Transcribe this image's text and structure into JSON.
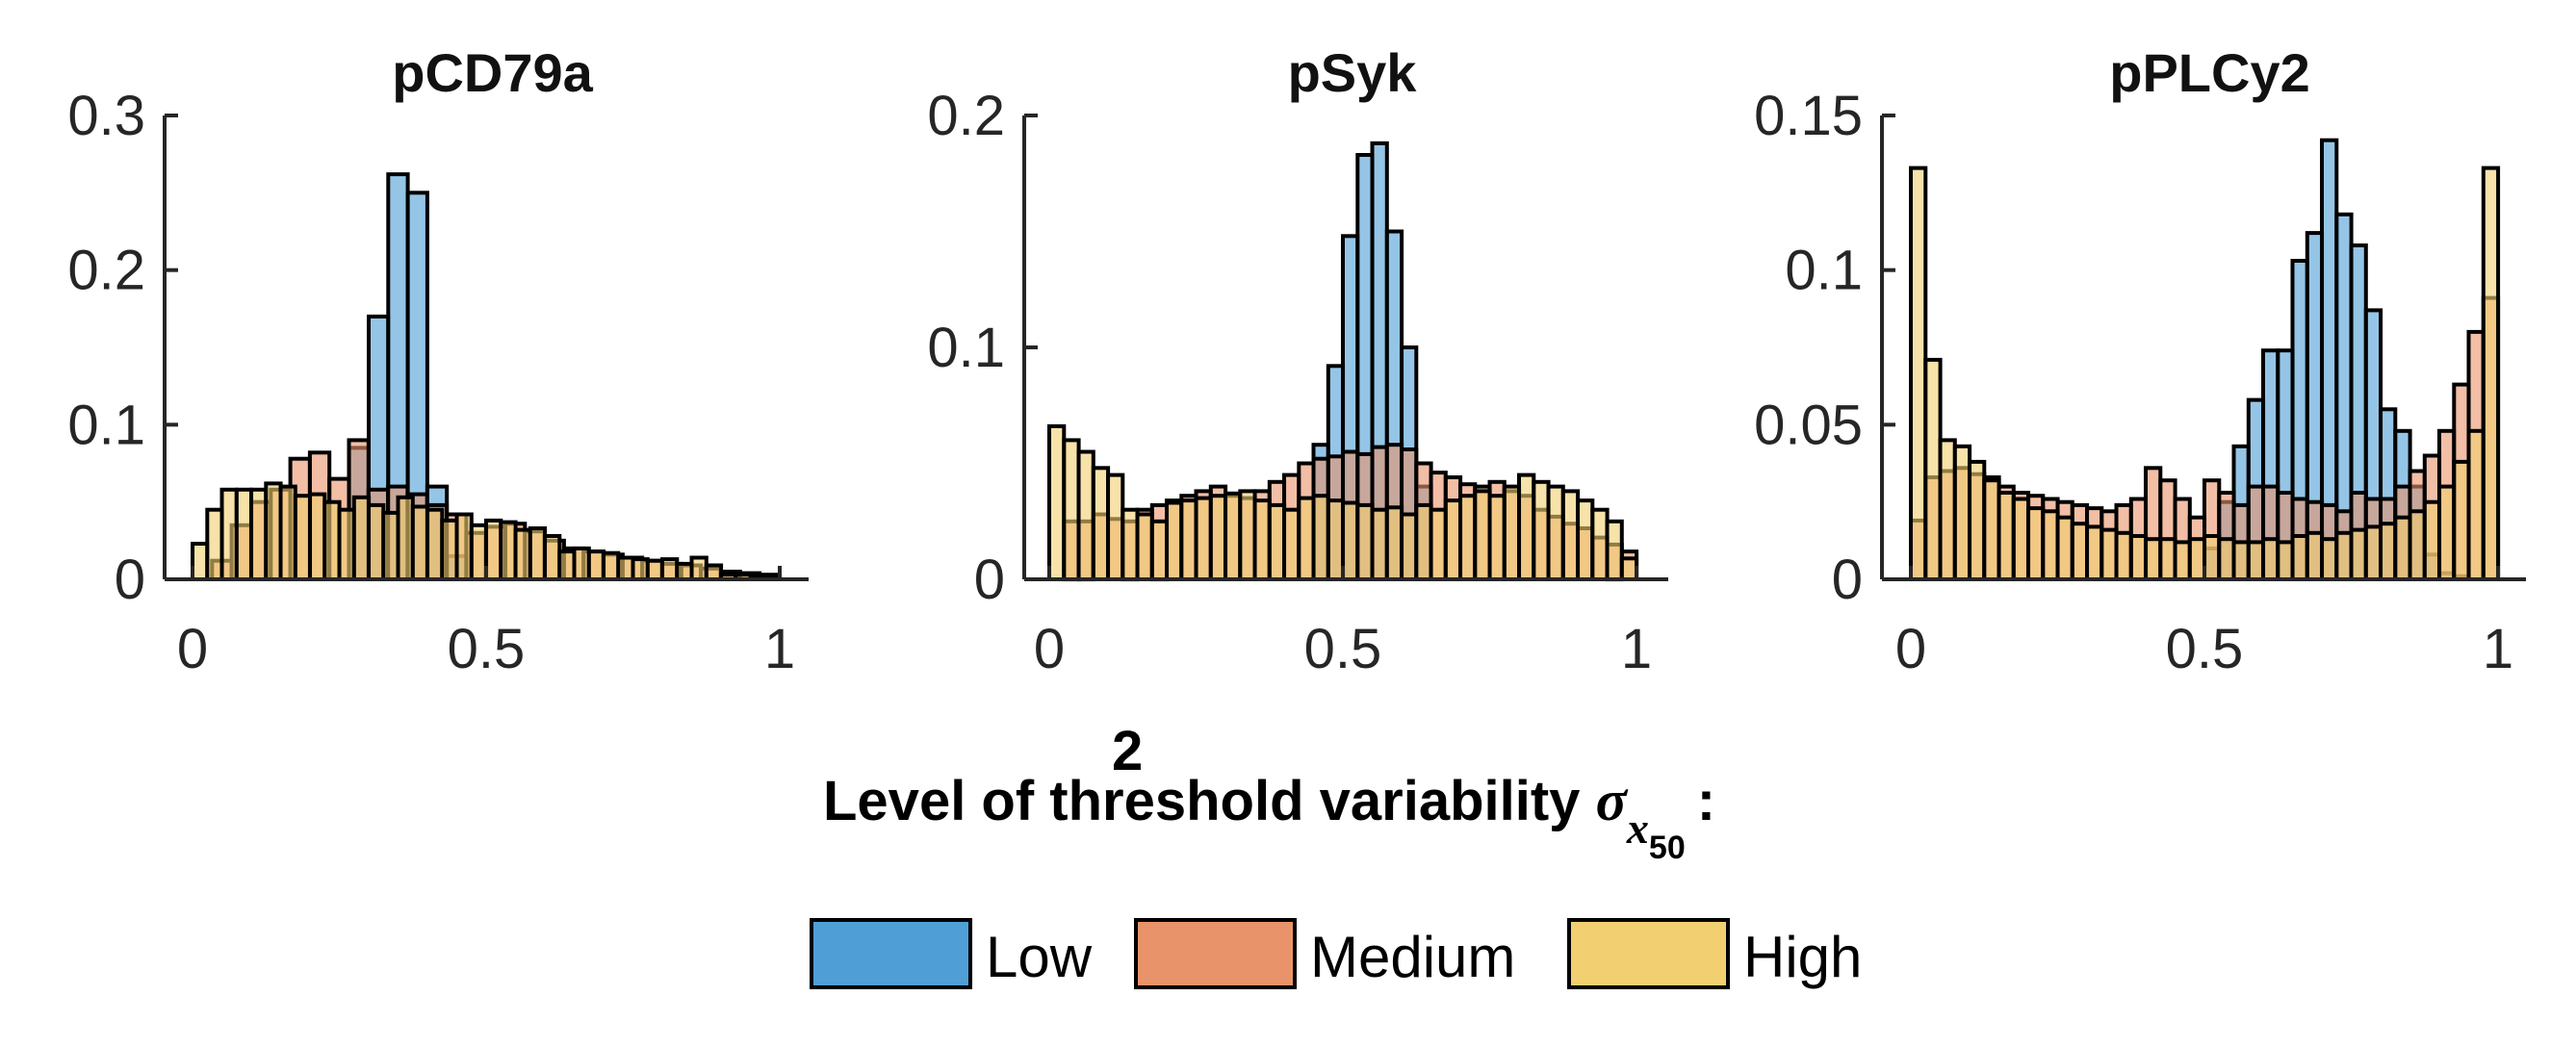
{
  "chart_data": [
    {
      "type": "bar",
      "title": "pCD79a",
      "x_edges": [
        0,
        0.05,
        0.1,
        0.15,
        0.2,
        0.25,
        0.3,
        0.35,
        0.4,
        0.45,
        0.5,
        0.55,
        0.6,
        0.65,
        0.7,
        0.75,
        0.8,
        0.85,
        0.9,
        0.95,
        1
      ],
      "xlim": [
        0,
        1
      ],
      "ylim": [
        0,
        0.3
      ],
      "xticks": [
        "0",
        "0.5",
        "1"
      ],
      "yticks": [
        "0",
        "0.1",
        "0.2",
        "0.3"
      ],
      "series": [
        {
          "name": "Low",
          "bin_width": 0.0333,
          "x_start": 0.2667,
          "values": [
            0.085,
            0.17,
            0.262,
            0.25,
            0.06,
            0.015
          ]
        },
        {
          "name": "Medium",
          "bin_width": 0.0333,
          "x_start": 0.0,
          "values": [
            0.0,
            0.012,
            0.035,
            0.05,
            0.058,
            0.078,
            0.082,
            0.065,
            0.09,
            0.058,
            0.06,
            0.055,
            0.048,
            0.042,
            0.03,
            0.034,
            0.036,
            0.031,
            0.025,
            0.02,
            0.018,
            0.016,
            0.014,
            0.012,
            0.01,
            0.009,
            0.007,
            0.005,
            0.004,
            0.003
          ]
        },
        {
          "name": "High",
          "bin_width": 0.025,
          "x_start": 0.0,
          "values": [
            0.023,
            0.045,
            0.058,
            0.058,
            0.058,
            0.062,
            0.06,
            0.054,
            0.055,
            0.05,
            0.045,
            0.053,
            0.048,
            0.043,
            0.053,
            0.047,
            0.045,
            0.038,
            0.042,
            0.035,
            0.038,
            0.037,
            0.032,
            0.033,
            0.028,
            0.018,
            0.02,
            0.018,
            0.017,
            0.014,
            0.013,
            0.012,
            0.013,
            0.01,
            0.014,
            0.009,
            0.003,
            0.003,
            0.002,
            0.001
          ]
        }
      ]
    },
    {
      "type": "bar",
      "title": "pSyk",
      "xlim": [
        0,
        1
      ],
      "ylim": [
        0,
        0.2
      ],
      "xticks": [
        "0",
        "0.5",
        "1"
      ],
      "yticks": [
        "0",
        "0.1",
        "0.2"
      ],
      "series": [
        {
          "name": "Low",
          "bin_width": 0.025,
          "x_start": 0.45,
          "values": [
            0.058,
            0.092,
            0.148,
            0.183,
            0.188,
            0.15,
            0.1,
            0.04
          ]
        },
        {
          "name": "Medium",
          "bin_width": 0.025,
          "x_start": 0.0,
          "values": [
            0.0,
            0.025,
            0.025,
            0.028,
            0.026,
            0.025,
            0.03,
            0.032,
            0.034,
            0.036,
            0.038,
            0.04,
            0.036,
            0.035,
            0.038,
            0.042,
            0.045,
            0.05,
            0.052,
            0.053,
            0.055,
            0.054,
            0.057,
            0.058,
            0.056,
            0.05,
            0.046,
            0.044,
            0.041,
            0.04,
            0.042,
            0.038,
            0.036,
            0.03,
            0.027,
            0.024,
            0.022,
            0.018,
            0.015,
            0.012
          ]
        },
        {
          "name": "High",
          "bin_width": 0.025,
          "x_start": 0.0,
          "values": [
            0.066,
            0.06,
            0.055,
            0.048,
            0.045,
            0.03,
            0.028,
            0.025,
            0.033,
            0.034,
            0.035,
            0.036,
            0.037,
            0.038,
            0.034,
            0.032,
            0.03,
            0.035,
            0.036,
            0.034,
            0.033,
            0.032,
            0.03,
            0.031,
            0.028,
            0.032,
            0.03,
            0.034,
            0.036,
            0.038,
            0.036,
            0.04,
            0.045,
            0.042,
            0.04,
            0.038,
            0.034,
            0.03,
            0.025,
            0.009
          ]
        }
      ]
    },
    {
      "type": "bar",
      "title": "pPLCy2",
      "xlim": [
        0,
        1
      ],
      "ylim": [
        0,
        0.15
      ],
      "xticks": [
        "0",
        "0.5",
        "1"
      ],
      "yticks": [
        "0",
        "0.05",
        "0.1",
        "0.15"
      ],
      "series": [
        {
          "name": "Low",
          "bin_width": 0.025,
          "x_start": 0.5,
          "values": [
            0.01,
            0.025,
            0.043,
            0.058,
            0.074,
            0.074,
            0.103,
            0.112,
            0.142,
            0.118,
            0.108,
            0.087,
            0.055,
            0.048,
            0.03,
            0.008,
            0.002,
            0.001,
            0.0,
            0.0
          ]
        },
        {
          "name": "Medium",
          "bin_width": 0.025,
          "x_start": 0.0,
          "values": [
            0.019,
            0.033,
            0.035,
            0.036,
            0.034,
            0.033,
            0.03,
            0.028,
            0.027,
            0.026,
            0.025,
            0.024,
            0.023,
            0.022,
            0.024,
            0.026,
            0.036,
            0.032,
            0.026,
            0.02,
            0.032,
            0.028,
            0.024,
            0.03,
            0.03,
            0.028,
            0.026,
            0.025,
            0.024,
            0.022,
            0.028,
            0.026,
            0.026,
            0.03,
            0.035,
            0.04,
            0.048,
            0.063,
            0.08,
            0.091
          ]
        },
        {
          "name": "High",
          "bin_width": 0.025,
          "x_start": 0.0,
          "values": [
            0.133,
            0.071,
            0.045,
            0.043,
            0.038,
            0.032,
            0.028,
            0.026,
            0.023,
            0.022,
            0.02,
            0.018,
            0.017,
            0.016,
            0.015,
            0.014,
            0.013,
            0.013,
            0.012,
            0.013,
            0.014,
            0.013,
            0.012,
            0.012,
            0.013,
            0.012,
            0.014,
            0.015,
            0.013,
            0.015,
            0.016,
            0.017,
            0.018,
            0.02,
            0.022,
            0.025,
            0.03,
            0.038,
            0.048,
            0.133
          ]
        }
      ]
    }
  ],
  "legend": {
    "title": "Level of threshold variability",
    "symbol": "σ",
    "superscript": "2",
    "subscript": "x",
    "subsubscript": "50",
    "suffix": ":",
    "placement": "bottom-center",
    "items": [
      {
        "label": "Low",
        "color": "#4f9fd6"
      },
      {
        "label": "Medium",
        "color": "#e9936a"
      },
      {
        "label": "High",
        "color": "#f2cf70"
      }
    ]
  },
  "colors": {
    "Low": "#4f9fd6",
    "Medium": "#e9936a",
    "High": "#f2cf70",
    "axis": "#262626",
    "edge": "#000000"
  },
  "opacity": 0.6
}
